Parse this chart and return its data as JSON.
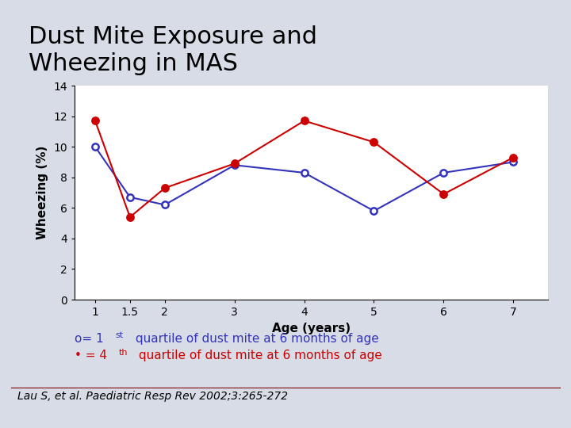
{
  "title": "Dust Mite Exposure and\nWheezing in MAS",
  "xlabel": "Age (years)",
  "ylabel": "Wheezing (%)",
  "background_color": "#d8dce6",
  "plot_bg_color": "#ffffff",
  "x_values": [
    1,
    1.5,
    2,
    3,
    4,
    5,
    6,
    7
  ],
  "blue_open": [
    10.0,
    6.7,
    6.2,
    8.8,
    8.3,
    5.8,
    8.3,
    9.0
  ],
  "red_filled": [
    11.7,
    5.4,
    7.3,
    8.9,
    11.7,
    10.3,
    6.9,
    9.3
  ],
  "blue_color": "#3333bb",
  "red_color": "#cc0000",
  "ylim": [
    0,
    14
  ],
  "yticks": [
    0,
    2,
    4,
    6,
    8,
    10,
    12,
    14
  ],
  "xticks": [
    1,
    1.5,
    2,
    3,
    4,
    5,
    6,
    7
  ],
  "citation": "Lau S, et al. Paediatric Resp Rev 2002;3:265-272",
  "title_fontsize": 22,
  "axis_fontsize": 11,
  "tick_fontsize": 10,
  "legend_fontsize": 11,
  "citation_fontsize": 10
}
